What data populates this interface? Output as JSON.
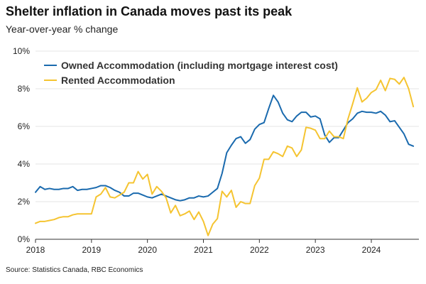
{
  "chart_data": {
    "type": "line",
    "title": "Shelter inflation in Canada moves past its peak",
    "subtitle": "Year-over-year % change",
    "source": "Source: Statistics Canada, RBC Economics",
    "xlabel": "",
    "ylabel": "",
    "xlim": [
      2018,
      2024.85
    ],
    "ylim": [
      0,
      10
    ],
    "x_ticks": [
      {
        "value": 2018,
        "label": "2018"
      },
      {
        "value": 2019,
        "label": "2019"
      },
      {
        "value": 2020,
        "label": "2020"
      },
      {
        "value": 2021,
        "label": "2021"
      },
      {
        "value": 2022,
        "label": "2022"
      },
      {
        "value": 2023,
        "label": "2023"
      },
      {
        "value": 2024,
        "label": "2024"
      }
    ],
    "y_ticks": [
      {
        "value": 0,
        "label": "0%"
      },
      {
        "value": 2,
        "label": "2%"
      },
      {
        "value": 4,
        "label": "4%"
      },
      {
        "value": 6,
        "label": "6%"
      },
      {
        "value": 8,
        "label": "8%"
      },
      {
        "value": 10,
        "label": "10%"
      }
    ],
    "grid": true,
    "legend_position": "top-left",
    "series": [
      {
        "name": "Owned Accommodation (including mortgage interest cost)",
        "color": "#1a6aae",
        "start": 2018,
        "step_months": 1,
        "values": [
          2.5,
          2.8,
          2.65,
          2.7,
          2.65,
          2.65,
          2.7,
          2.7,
          2.8,
          2.6,
          2.65,
          2.65,
          2.7,
          2.75,
          2.85,
          2.85,
          2.75,
          2.6,
          2.5,
          2.3,
          2.3,
          2.45,
          2.45,
          2.35,
          2.25,
          2.2,
          2.3,
          2.4,
          2.3,
          2.2,
          2.1,
          2.05,
          2.1,
          2.2,
          2.2,
          2.3,
          2.25,
          2.3,
          2.5,
          2.7,
          3.5,
          4.6,
          5.0,
          5.35,
          5.45,
          5.1,
          5.3,
          5.85,
          6.1,
          6.2,
          6.95,
          7.65,
          7.3,
          6.7,
          6.35,
          6.25,
          6.55,
          6.75,
          6.75,
          6.5,
          6.55,
          6.4,
          5.55,
          5.15,
          5.4,
          5.4,
          5.8,
          6.2,
          6.4,
          6.7,
          6.8,
          6.75,
          6.75,
          6.7,
          6.8,
          6.6,
          6.25,
          6.3,
          5.95,
          5.6,
          5.05,
          4.95
        ]
      },
      {
        "name": "Rented Accommodation",
        "color": "#f5c431",
        "start": 2018,
        "step_months": 1,
        "values": [
          0.85,
          0.95,
          0.95,
          1.0,
          1.05,
          1.15,
          1.2,
          1.2,
          1.3,
          1.35,
          1.35,
          1.35,
          1.35,
          2.25,
          2.4,
          2.75,
          2.25,
          2.2,
          2.35,
          2.5,
          3.0,
          3.0,
          3.6,
          3.2,
          3.45,
          2.4,
          2.8,
          2.55,
          2.2,
          1.4,
          1.8,
          1.25,
          1.35,
          1.5,
          1.05,
          1.45,
          0.95,
          0.2,
          0.8,
          1.1,
          2.55,
          2.25,
          2.6,
          1.7,
          2.0,
          1.9,
          1.9,
          2.85,
          3.25,
          4.25,
          4.25,
          4.65,
          4.55,
          4.4,
          4.95,
          4.85,
          4.4,
          4.75,
          5.95,
          5.9,
          5.8,
          5.35,
          5.35,
          5.75,
          5.45,
          5.45,
          5.35,
          6.4,
          7.2,
          8.05,
          7.3,
          7.5,
          7.8,
          7.95,
          8.45,
          7.9,
          8.55,
          8.5,
          8.25,
          8.6,
          8.0,
          7.05
        ]
      }
    ]
  }
}
